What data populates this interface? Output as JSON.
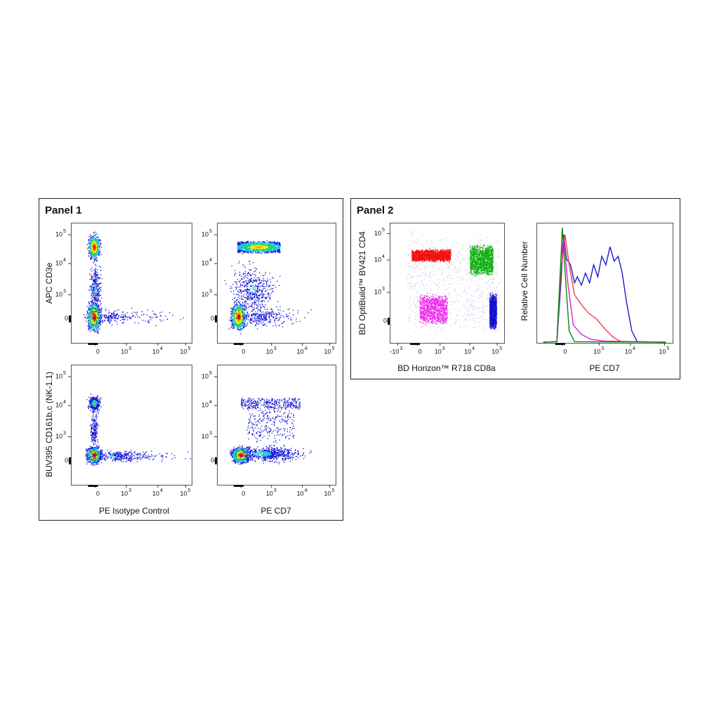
{
  "panel_1": {
    "title": "Panel 1",
    "row_labels": [
      "APC CD3e",
      "BUV395  CD161b,c  (NK-1.1)"
    ],
    "column_labels": [
      "PE Isotype Control",
      "PE CD7"
    ],
    "ticks": [
      {
        "label": "0"
      },
      {
        "base": "10",
        "exp": "3"
      },
      {
        "base": "10",
        "exp": "4"
      },
      {
        "base": "10",
        "exp": "5"
      }
    ]
  },
  "panel_2": {
    "title": "Panel 2",
    "scatter": {
      "x_label": "BD Horizon™ R718 CD8a",
      "y_label": "BD OptiBuild™ BV421 CD4",
      "x_ticks": [
        {
          "base": "-10",
          "exp": "3"
        },
        {
          "label": "0"
        },
        {
          "base": "10",
          "exp": "3"
        },
        {
          "base": "10",
          "exp": "4"
        },
        {
          "base": "10",
          "exp": "5"
        }
      ],
      "y_ticks": [
        {
          "label": "0"
        },
        {
          "base": "10",
          "exp": "3"
        },
        {
          "base": "10",
          "exp": "4"
        },
        {
          "base": "10",
          "exp": "5"
        }
      ]
    },
    "histogram": {
      "x_label": "PE CD7",
      "y_label": "Relative Cell Number",
      "x_ticks": [
        {
          "label": "0"
        },
        {
          "base": "10",
          "exp": "3"
        },
        {
          "base": "10",
          "exp": "4"
        },
        {
          "base": "10",
          "exp": "5"
        }
      ]
    }
  }
}
